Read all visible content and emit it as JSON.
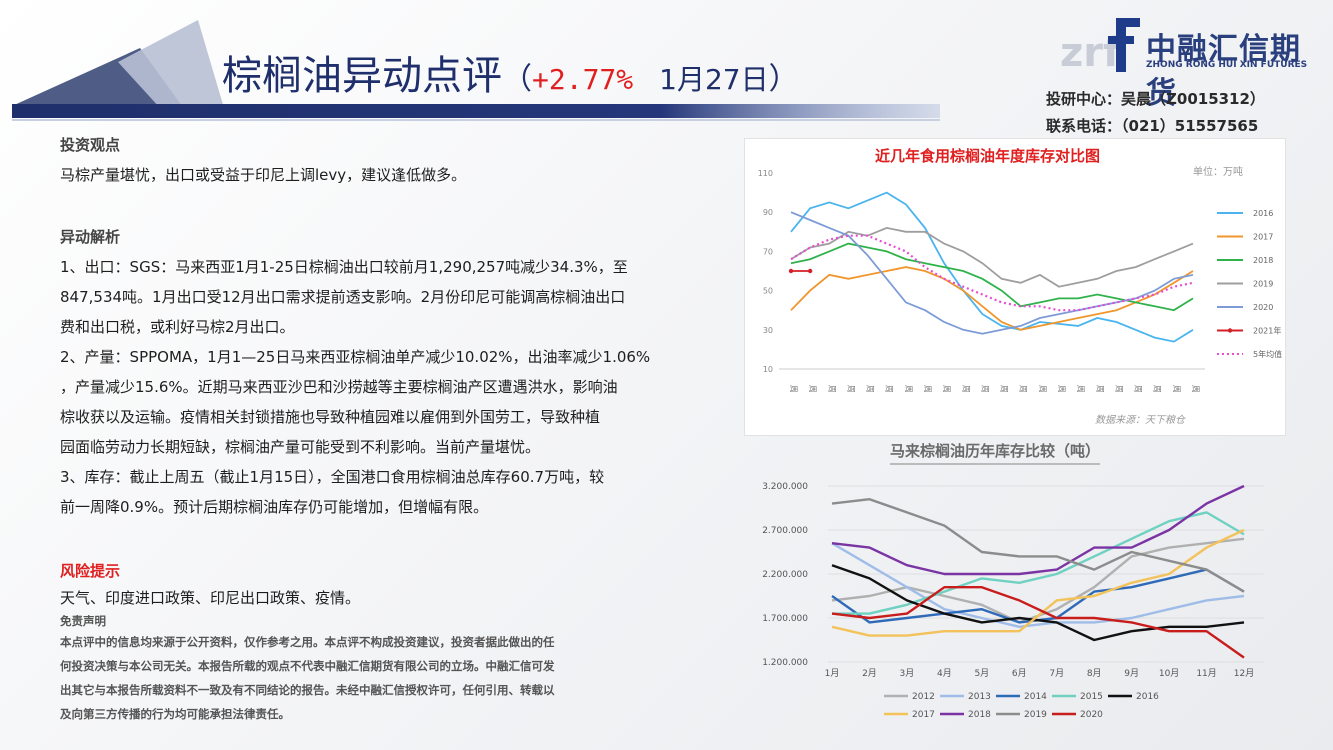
{
  "header": {
    "title_part1": "棕榈油",
    "title_part2": "异动点评",
    "paren_open": "（",
    "change_pct": "+2.77%",
    "date": "1月27日",
    "paren_close": "）",
    "colors": {
      "navy": "#1f2f6b",
      "red": "#e02020"
    }
  },
  "logo": {
    "mark": "zrf",
    "company_cn": "中融汇信期货",
    "company_en": "ZHONG RONG HUI XIN FUTURES"
  },
  "contact": {
    "analyst": "投研中心：吴晨（Z0015312）",
    "phone": "联系电话：（021）51557565"
  },
  "content": {
    "view_heading": "投资观点",
    "view_text": "马棕产量堪忧，出口或受益于印尼上调levy，建议逢低做多。",
    "analysis_heading": "异动解析",
    "analysis_lines": [
      "1、出口：SGS：马来西亚1月1-25日棕榈油出口较前月1,290,257吨减少34.3%，至",
      "847,534吨。1月出口受12月出口需求提前透支影响。2月份印尼可能调高棕榈油出口",
      "费和出口税，或利好马棕2月出口。",
      "2、产量：SPPOMA，1月1—25日马来西亚棕榈油单产减少10.02%，出油率减少1.06%",
      "，产量减少15.6%。近期马来西亚沙巴和沙捞越等主要棕榈油产区遭遇洪水，影响油",
      "棕收获以及运输。疫情相关封锁措施也导致种植园难以雇佣到外国劳工，导致种植",
      "园面临劳动力长期短缺，棕榈油产量可能受到不利影响。当前产量堪忧。",
      "3、库存：截止上周五（截止1月15日），全国港口食用棕榈油总库存60.7万吨，较",
      "前一周降0.9%。预计后期棕榈油库存仍可能增加，但增幅有限。"
    ],
    "risk_heading": "风险提示",
    "risk_text": "天气、印度进口政策、印尼出口政策、疫情。",
    "disclaimer_heading": "免责声明",
    "disclaimer_lines": [
      "本点评中的信息均来源于公开资料，仅作参考之用。本点评不构成投资建议，投资者据此做出的任",
      "何投资决策与本公司无关。本报告所载的观点不代表中融汇信期货有限公司的立场。中融汇信可发",
      "出其它与本报告所载资料不一致及有不同结论的报告。未经中融汇信授权许可，任何引用、转载以",
      "及向第三方传播的行为均可能承担法律责任。"
    ]
  },
  "chart_data": [
    {
      "type": "line",
      "title": "近几年食用棕榈油年度库存对比图",
      "unit": "单位：万吨",
      "source": "数据来源：天下粮仓",
      "ylim": [
        10,
        110
      ],
      "yticks": [
        10,
        30,
        50,
        70,
        90,
        110
      ],
      "x_labels": [
        "周",
        "周",
        "周",
        "周",
        "周",
        "周",
        "周",
        "周",
        "周",
        "周",
        "周",
        "周",
        "周",
        "周",
        "周",
        "周",
        "周",
        "周",
        "周",
        "周",
        "周",
        "周"
      ],
      "series": [
        {
          "name": "2016",
          "color": "#4ab4ef",
          "dash": false,
          "values": [
            80,
            92,
            95,
            92,
            96,
            100,
            94,
            82,
            64,
            50,
            38,
            32,
            30,
            34,
            33,
            32,
            36,
            34,
            30,
            26,
            24,
            30
          ]
        },
        {
          "name": "2017",
          "color": "#f0962c",
          "dash": false,
          "values": [
            40,
            50,
            58,
            56,
            58,
            60,
            62,
            60,
            56,
            50,
            42,
            34,
            30,
            32,
            34,
            36,
            38,
            40,
            44,
            48,
            54,
            60
          ]
        },
        {
          "name": "2018",
          "color": "#2fb24a",
          "dash": false,
          "values": [
            64,
            66,
            70,
            74,
            72,
            70,
            66,
            64,
            62,
            60,
            56,
            50,
            42,
            44,
            46,
            46,
            48,
            46,
            44,
            42,
            40,
            46
          ]
        },
        {
          "name": "2019",
          "color": "#9e9e9e",
          "dash": false,
          "values": [
            66,
            72,
            74,
            80,
            78,
            82,
            80,
            80,
            74,
            70,
            64,
            56,
            54,
            58,
            52,
            54,
            56,
            60,
            62,
            66,
            70,
            74
          ]
        },
        {
          "name": "2020",
          "color": "#7d9bd6",
          "dash": false,
          "values": [
            90,
            86,
            82,
            78,
            68,
            56,
            44,
            40,
            34,
            30,
            28,
            30,
            32,
            36,
            38,
            40,
            42,
            44,
            46,
            50,
            56,
            58
          ]
        },
        {
          "name": "2021年",
          "color": "#d41f26",
          "dash": false,
          "values": [
            60,
            60
          ]
        },
        {
          "name": "5年均值",
          "color": "#e94bd3",
          "dash": true,
          "values": [
            66,
            72,
            76,
            78,
            78,
            74,
            70,
            62,
            56,
            52,
            48,
            44,
            42,
            42,
            40,
            40,
            42,
            44,
            46,
            48,
            52,
            54
          ]
        }
      ],
      "legend": "right",
      "grid": false
    },
    {
      "type": "line",
      "title": "马来棕榈油历年库存比较（吨）",
      "categories": [
        "1月",
        "2月",
        "3月",
        "4月",
        "5月",
        "6月",
        "7月",
        "8月",
        "9月",
        "10月",
        "11月",
        "12月"
      ],
      "yticks": [
        "1.200.000",
        "1.700.000",
        "2.200.000",
        "2.700.000",
        "3.200.000"
      ],
      "ytick_values": [
        1200000,
        1700000,
        2200000,
        2700000,
        3200000
      ],
      "ylim": [
        1200000,
        3200000
      ],
      "series": [
        {
          "name": "2012",
          "color": "#b0b0b0",
          "values": [
            1900000,
            1950000,
            2050000,
            1950000,
            1850000,
            1650000,
            1800000,
            2050000,
            2400000,
            2500000,
            2550000,
            2600000
          ]
        },
        {
          "name": "2013",
          "color": "#9fbde8",
          "values": [
            2550000,
            2300000,
            2050000,
            1800000,
            1700000,
            1600000,
            1650000,
            1650000,
            1700000,
            1800000,
            1900000,
            1950000
          ]
        },
        {
          "name": "2014",
          "color": "#2f6ab8",
          "values": [
            1950000,
            1650000,
            1700000,
            1750000,
            1800000,
            1650000,
            1700000,
            2000000,
            2050000,
            2150000,
            2250000,
            2000000
          ]
        },
        {
          "name": "2015",
          "color": "#6fd1c1",
          "values": [
            1750000,
            1750000,
            1850000,
            2000000,
            2150000,
            2100000,
            2200000,
            2400000,
            2600000,
            2800000,
            2900000,
            2650000
          ]
        },
        {
          "name": "2016",
          "color": "#111111",
          "values": [
            2300000,
            2150000,
            1900000,
            1750000,
            1650000,
            1700000,
            1650000,
            1450000,
            1550000,
            1600000,
            1600000,
            1650000
          ]
        },
        {
          "name": "2017",
          "color": "#f3c25a",
          "values": [
            1600000,
            1500000,
            1500000,
            1550000,
            1550000,
            1550000,
            1900000,
            1950000,
            2100000,
            2200000,
            2500000,
            2700000
          ]
        },
        {
          "name": "2018",
          "color": "#7a34a4",
          "values": [
            2550000,
            2500000,
            2300000,
            2200000,
            2200000,
            2200000,
            2250000,
            2500000,
            2500000,
            2700000,
            3000000,
            3200000
          ]
        },
        {
          "name": "2019",
          "color": "#8c8c8c",
          "values": [
            3000000,
            3050000,
            2900000,
            2750000,
            2450000,
            2400000,
            2400000,
            2250000,
            2450000,
            2350000,
            2250000,
            2000000
          ]
        },
        {
          "name": "2020",
          "color": "#c81d1d",
          "values": [
            1750000,
            1700000,
            1750000,
            2050000,
            2050000,
            1900000,
            1700000,
            1700000,
            1650000,
            1550000,
            1550000,
            1250000
          ]
        }
      ],
      "legend": "bottom",
      "grid": true
    }
  ]
}
